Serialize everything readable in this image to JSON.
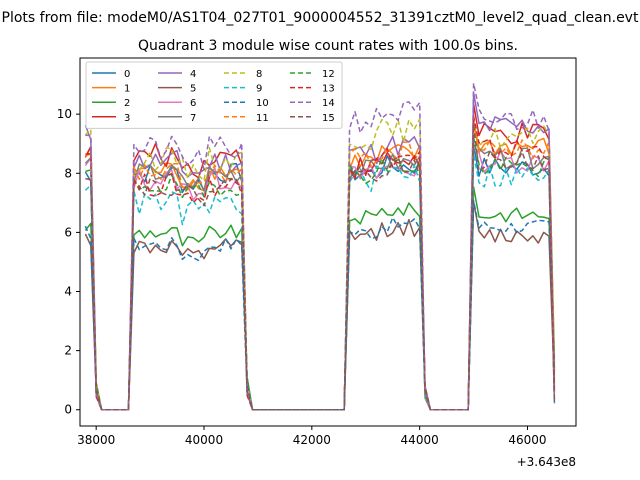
{
  "figure": {
    "suptitle": "Plots from file: modeM0/AS1T04_027T01_9000004552_31391cztM0_level2_quad_clean.evt"
  },
  "chart_data": {
    "type": "line",
    "title": "Quadrant 3 module wise count rates with 100.0s bins.",
    "xlabel": "",
    "ylabel": "",
    "xlim": [
      37700,
      46900
    ],
    "ylim": [
      -0.55,
      11.9
    ],
    "x_ticks": [
      38000,
      40000,
      42000,
      44000,
      46000
    ],
    "x_tick_labels": [
      "38000",
      "40000",
      "42000",
      "44000",
      "46000"
    ],
    "x_offset_label": "+3.643e8",
    "y_ticks": [
      0,
      2,
      4,
      6,
      8,
      10
    ],
    "y_tick_labels": [
      "0",
      "2",
      "4",
      "6",
      "8",
      "10"
    ],
    "grid": false,
    "legend_position": "top-left",
    "legend_columns": 4,
    "segments": [
      {
        "start": 37800,
        "end": 37900
      },
      {
        "start": 38700,
        "end": 40700
      },
      {
        "start": 42700,
        "end": 44000
      },
      {
        "start": 45000,
        "end": 46400
      }
    ],
    "gaps": [
      {
        "start": 38000,
        "end": 38600
      },
      {
        "start": 40800,
        "end": 42600
      },
      {
        "start": 44100,
        "end": 44900
      }
    ],
    "edge_values": {
      "38000": 0.7,
      "38700": 0.9,
      "40800": 0.8,
      "42600": 0.2,
      "42700": 1.8,
      "44100": 0.6,
      "44900": 0.9,
      "46500": 0.35
    },
    "series": [
      {
        "name": "0",
        "color": "#1f77b4",
        "dash": "solid",
        "levels": [
          8.0,
          8.0,
          8.0,
          8.2
        ],
        "noise": 0.35
      },
      {
        "name": "1",
        "color": "#ff7f0e",
        "dash": "solid",
        "levels": [
          8.6,
          8.1,
          8.4,
          8.9
        ],
        "noise": 0.35
      },
      {
        "name": "2",
        "color": "#2ca02c",
        "dash": "solid",
        "levels": [
          6.2,
          6.0,
          6.5,
          6.6
        ],
        "noise": 0.25
      },
      {
        "name": "3",
        "color": "#d62728",
        "dash": "solid",
        "levels": [
          8.9,
          8.6,
          8.2,
          9.3
        ],
        "noise": 0.4
      },
      {
        "name": "4",
        "color": "#9467bd",
        "dash": "solid",
        "levels": [
          9.3,
          8.4,
          8.7,
          9.6
        ],
        "noise": 0.4
      },
      {
        "name": "5",
        "color": "#8c564b",
        "dash": "solid",
        "levels": [
          5.8,
          5.5,
          5.9,
          5.9
        ],
        "noise": 0.3
      },
      {
        "name": "6",
        "color": "#e377c2",
        "dash": "solid",
        "levels": [
          8.2,
          7.8,
          7.9,
          8.4
        ],
        "noise": 0.4
      },
      {
        "name": "7",
        "color": "#7f7f7f",
        "dash": "solid",
        "levels": [
          8.4,
          8.0,
          8.1,
          8.5
        ],
        "noise": 0.35
      },
      {
        "name": "8",
        "color": "#bcbd22",
        "dash": "dashed",
        "levels": [
          9.5,
          8.5,
          9.2,
          9.2
        ],
        "noise": 0.4
      },
      {
        "name": "9",
        "color": "#17becf",
        "dash": "dashed",
        "levels": [
          7.8,
          7.0,
          7.8,
          7.9
        ],
        "noise": 0.45
      },
      {
        "name": "10",
        "color": "#1f77b4",
        "dash": "dashed",
        "levels": [
          6.0,
          5.6,
          6.0,
          6.2
        ],
        "noise": 0.25
      },
      {
        "name": "11",
        "color": "#ff7f0e",
        "dash": "dashed",
        "levels": [
          8.4,
          8.0,
          8.5,
          8.8
        ],
        "noise": 0.35
      },
      {
        "name": "12",
        "color": "#2ca02c",
        "dash": "dashed",
        "levels": [
          8.0,
          7.6,
          8.0,
          8.2
        ],
        "noise": 0.35
      },
      {
        "name": "13",
        "color": "#d62728",
        "dash": "dashed",
        "levels": [
          8.7,
          7.6,
          8.3,
          8.8
        ],
        "noise": 0.4
      },
      {
        "name": "14",
        "color": "#9467bd",
        "dash": "dashed",
        "levels": [
          9.5,
          8.8,
          9.8,
          9.8
        ],
        "noise": 0.45
      },
      {
        "name": "15",
        "color": "#8c564b",
        "dash": "dashed",
        "levels": [
          8.1,
          7.6,
          8.0,
          8.4
        ],
        "noise": 0.35
      }
    ]
  }
}
